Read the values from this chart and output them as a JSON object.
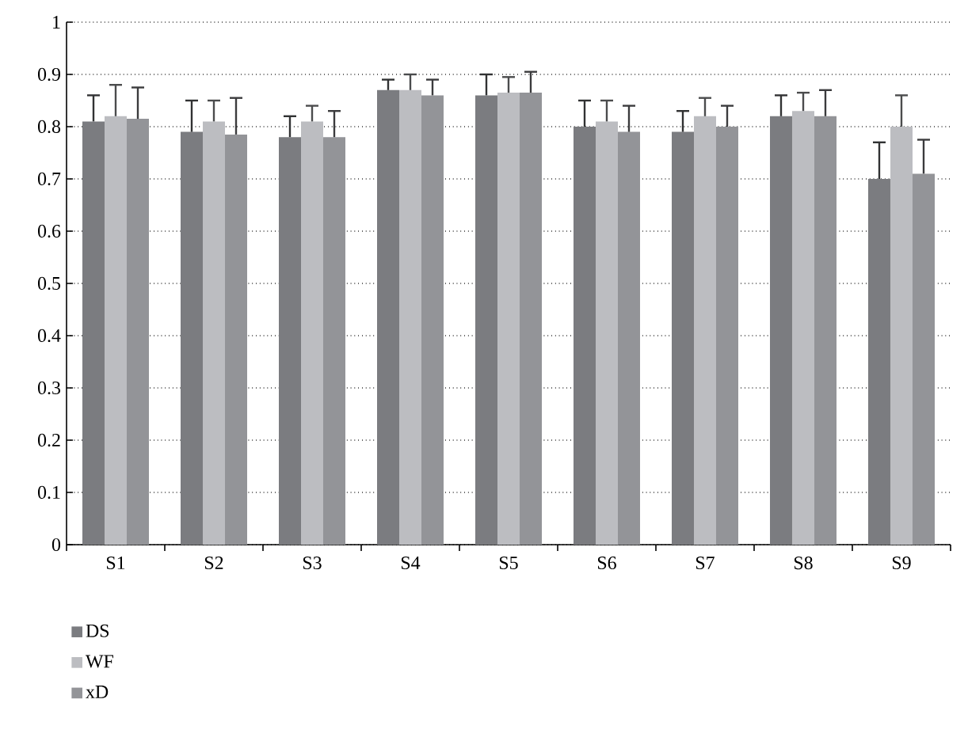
{
  "chart_data": {
    "type": "bar",
    "categories": [
      "S1",
      "S2",
      "S3",
      "S4",
      "S5",
      "S6",
      "S7",
      "S8",
      "S9"
    ],
    "series": [
      {
        "name": "DS",
        "color": "#7b7c80",
        "values": [
          0.81,
          0.79,
          0.78,
          0.87,
          0.86,
          0.8,
          0.79,
          0.82,
          0.7
        ],
        "errors": [
          0.05,
          0.06,
          0.04,
          0.02,
          0.04,
          0.05,
          0.04,
          0.04,
          0.07
        ]
      },
      {
        "name": "WF",
        "color": "#bcbdc1",
        "values": [
          0.82,
          0.81,
          0.81,
          0.87,
          0.865,
          0.81,
          0.82,
          0.83,
          0.8
        ],
        "errors": [
          0.06,
          0.04,
          0.03,
          0.03,
          0.03,
          0.04,
          0.035,
          0.035,
          0.06
        ]
      },
      {
        "name": "xD",
        "color": "#939498",
        "values": [
          0.815,
          0.785,
          0.78,
          0.86,
          0.865,
          0.79,
          0.8,
          0.82,
          0.71
        ],
        "errors": [
          0.06,
          0.07,
          0.05,
          0.03,
          0.04,
          0.05,
          0.04,
          0.05,
          0.065
        ]
      }
    ],
    "ylim": [
      0,
      1
    ],
    "yticks": [
      0,
      0.1,
      0.2,
      0.3,
      0.4,
      0.5,
      0.6,
      0.7,
      0.8,
      0.9,
      1
    ],
    "grid": "y",
    "legend": "bottom left"
  }
}
